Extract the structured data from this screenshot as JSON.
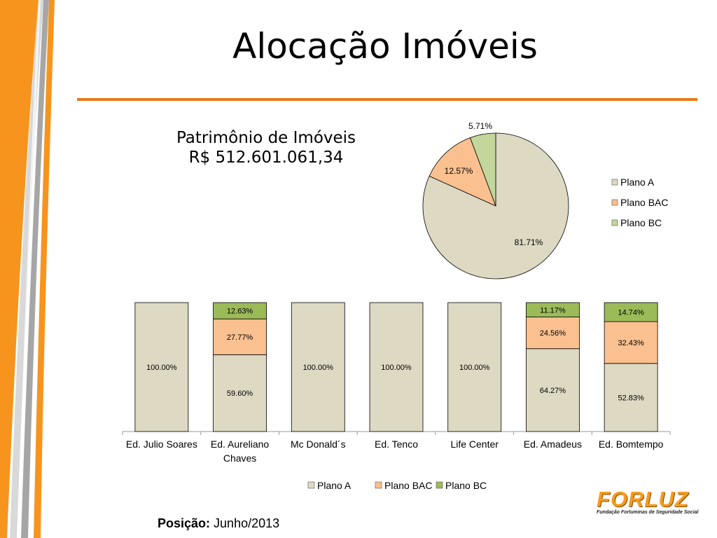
{
  "title": "Alocação Imóveis",
  "patrimonio": {
    "line1": "Patrimônio de Imóveis",
    "line2": "R$ 512.601.061,34"
  },
  "posicao": {
    "label": "Posição:",
    "value": "Junho/2013"
  },
  "logo": {
    "word": "FORLUZ",
    "subtitle": "Fundação Forluminas de Seguridade Social"
  },
  "colors": {
    "plano_a": "#ddd9c3",
    "plano_bac": "#fac090",
    "plano_bc_pie": "#c3d69b",
    "plano_bc_bar": "#9bbb59",
    "accent_orange": "#e8781e"
  },
  "chart_data": [
    {
      "type": "pie",
      "categories": [
        "Plano A",
        "Plano BAC",
        "Plano BC"
      ],
      "values": [
        81.71,
        12.57,
        5.71
      ],
      "labels": [
        "81.71%",
        "12.57%",
        "5.71%"
      ],
      "legend": "right"
    },
    {
      "type": "bar",
      "stacked": true,
      "categories": [
        "Ed. Julio Soares",
        "Ed. Aureliano Chaves",
        "Mc Donald´s",
        "Ed. Tenco",
        "Life Center",
        "Ed. Amadeus",
        "Ed. Bomtempo"
      ],
      "series": [
        {
          "name": "Plano A",
          "values": [
            100.0,
            59.6,
            100.0,
            100.0,
            100.0,
            64.27,
            52.83
          ],
          "labels": [
            "100.00%",
            "59.60%",
            "100.00%",
            "100.00%",
            "100.00%",
            "64.27%",
            "52.83%"
          ]
        },
        {
          "name": "Plano BAC",
          "values": [
            0,
            27.77,
            0,
            0,
            0,
            24.56,
            32.43
          ],
          "labels": [
            "",
            "27.77%",
            "",
            "",
            "",
            "24.56%",
            "32.43%"
          ]
        },
        {
          "name": "Plano BC",
          "values": [
            0,
            12.63,
            0,
            0,
            0,
            11.17,
            14.74
          ],
          "labels": [
            "",
            "12.63%",
            "",
            "",
            "",
            "11.17%",
            "14.74%"
          ]
        }
      ],
      "ylim": [
        0,
        100
      ],
      "legend": "bottom"
    }
  ]
}
